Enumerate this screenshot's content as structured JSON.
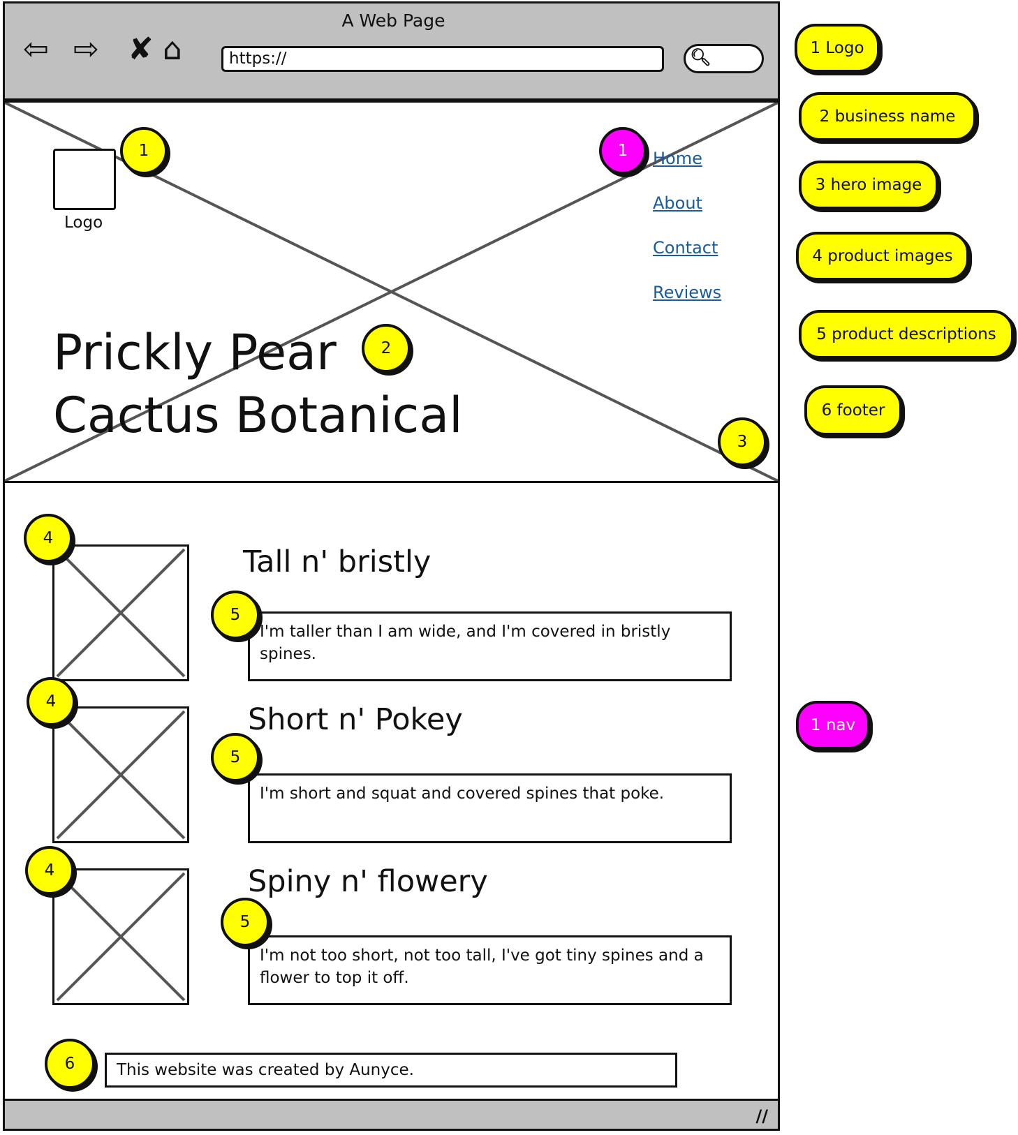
{
  "browser": {
    "title": "A Web Page",
    "url": "https://"
  },
  "hero": {
    "logo_label": "Logo",
    "nav": [
      "Home",
      "About",
      "Contact",
      "Reviews"
    ],
    "business_name_line1": "Prickly Pear",
    "business_name_line2": "Cactus Botanical"
  },
  "products": [
    {
      "title": "Tall n' bristly",
      "description": "I'm taller than I am wide, and I'm covered in bristly spines."
    },
    {
      "title": "Short n' Pokey",
      "description": "I'm short and squat and covered spines that poke."
    },
    {
      "title": "Spiny n' flowery",
      "description": "I'm not too short, not too tall, I've got tiny spines and a flower to top it off."
    }
  ],
  "footer": {
    "text": "This website was created by Aunyce."
  },
  "markers": {
    "logo": "1",
    "nav": "1",
    "business_name": "2",
    "hero_image": "3",
    "product_image": "4",
    "product_description": "5",
    "footer": "6"
  },
  "legend": {
    "items": [
      "1 Logo",
      "2 business name",
      "3 hero image",
      "4 product images",
      "5 product descriptions",
      "6 footer"
    ],
    "nav_item": "1 nav"
  },
  "colors": {
    "marker_yellow": "#ffff00",
    "marker_pink": "#ff00ff",
    "chrome_gray": "#c0c0c0",
    "link_blue": "#1a5aa0"
  }
}
